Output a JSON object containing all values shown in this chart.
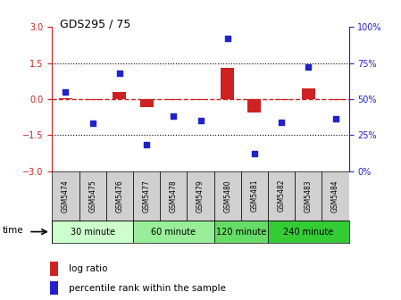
{
  "title": "GDS295 / 75",
  "samples": [
    "GSM5474",
    "GSM5475",
    "GSM5476",
    "GSM5477",
    "GSM5478",
    "GSM5479",
    "GSM5480",
    "GSM5481",
    "GSM5482",
    "GSM5483",
    "GSM5484"
  ],
  "log_ratio": [
    0.05,
    -0.05,
    0.28,
    -0.35,
    -0.05,
    -0.05,
    1.3,
    -0.55,
    -0.05,
    0.45,
    -0.05
  ],
  "percentile_rank": [
    55,
    33,
    68,
    18,
    38,
    35,
    92,
    12,
    34,
    72,
    36
  ],
  "ylim_left": [
    -3,
    3
  ],
  "ylim_right": [
    0,
    100
  ],
  "yticks_left": [
    -3,
    -1.5,
    0,
    1.5,
    3
  ],
  "yticks_right": [
    0,
    25,
    50,
    75,
    100
  ],
  "hlines": [
    -1.5,
    1.5
  ],
  "bar_color": "#cc2222",
  "dot_color": "#2222cc",
  "zero_line_color": "#cc2222",
  "hline_color": "#000000",
  "groups": [
    {
      "label": "30 minute",
      "start": 0,
      "end": 2,
      "color": "#ccffcc"
    },
    {
      "label": "60 minute",
      "start": 3,
      "end": 5,
      "color": "#99ee99"
    },
    {
      "label": "120 minute",
      "start": 6,
      "end": 7,
      "color": "#66dd66"
    },
    {
      "label": "240 minute",
      "start": 8,
      "end": 10,
      "color": "#33cc33"
    }
  ],
  "xlabel_time": "time",
  "legend_bar": "log ratio",
  "legend_dot": "percentile rank within the sample",
  "tick_label_color_left": "#cc2222",
  "tick_label_color_right": "#2222cc",
  "right_axis_suffix": "%"
}
